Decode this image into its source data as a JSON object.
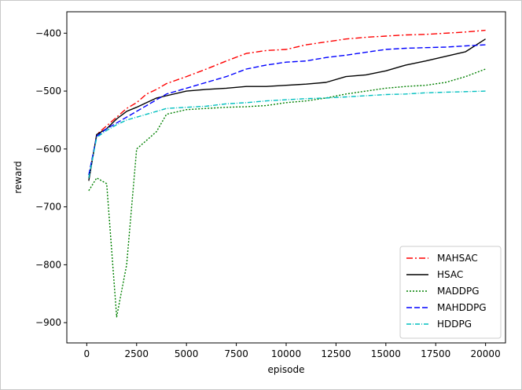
{
  "chart_data": {
    "type": "line",
    "title": "",
    "xlabel": "episode",
    "ylabel": "reward",
    "xlim": [
      -1000,
      21000
    ],
    "ylim": [
      -935,
      -363
    ],
    "xticks": [
      0,
      2500,
      5000,
      7500,
      10000,
      12500,
      15000,
      17500,
      20000
    ],
    "xtick_labels": [
      "0",
      "2500",
      "5000",
      "7500",
      "10000",
      "12500",
      "15000",
      "17500",
      "20000"
    ],
    "yticks": [
      -900,
      -800,
      -700,
      -600,
      -500,
      -400
    ],
    "ytick_labels": [
      "−900",
      "−800",
      "−700",
      "−600",
      "−500",
      "−400"
    ],
    "grid": false,
    "legend_position": "lower-right",
    "x": [
      100,
      500,
      1000,
      1500,
      2000,
      2500,
      3000,
      3500,
      4000,
      5000,
      6000,
      7000,
      8000,
      9000,
      10000,
      11000,
      12000,
      13000,
      14000,
      15000,
      16000,
      17000,
      18000,
      19000,
      20000
    ],
    "series": [
      {
        "name": "MAHSAC",
        "color": "#ff0000",
        "dash": "8 3 2 3",
        "values": [
          -650,
          -575,
          -560,
          -545,
          -530,
          -520,
          -505,
          -497,
          -487,
          -475,
          -462,
          -448,
          -435,
          -430,
          -428,
          -420,
          -415,
          -410,
          -407,
          -405,
          -403,
          -402,
          -400,
          -398,
          -395
        ]
      },
      {
        "name": "HSAC",
        "color": "#000000",
        "dash": "",
        "values": [
          -655,
          -575,
          -565,
          -548,
          -535,
          -528,
          -520,
          -512,
          -508,
          -500,
          -497,
          -495,
          -492,
          -492,
          -490,
          -488,
          -485,
          -475,
          -472,
          -465,
          -455,
          -448,
          -440,
          -432,
          -410
        ]
      },
      {
        "name": "MADDPG",
        "color": "#008000",
        "dash": "2 2",
        "values": [
          -672,
          -650,
          -660,
          -890,
          -800,
          -600,
          -585,
          -570,
          -540,
          -532,
          -530,
          -528,
          -527,
          -525,
          -520,
          -517,
          -512,
          -505,
          -500,
          -495,
          -492,
          -490,
          -485,
          -475,
          -462
        ]
      },
      {
        "name": "MAHDDPG",
        "color": "#0000ff",
        "dash": "7 3",
        "values": [
          -645,
          -578,
          -565,
          -555,
          -545,
          -535,
          -525,
          -515,
          -505,
          -495,
          -485,
          -475,
          -462,
          -455,
          -450,
          -448,
          -442,
          -438,
          -433,
          -428,
          -426,
          -425,
          -424,
          -422,
          -420
        ]
      },
      {
        "name": "HDDPG",
        "color": "#00bfbf",
        "dash": "6 2 1 2",
        "values": [
          -650,
          -580,
          -568,
          -558,
          -550,
          -545,
          -540,
          -535,
          -530,
          -528,
          -526,
          -522,
          -520,
          -517,
          -515,
          -513,
          -512,
          -510,
          -508,
          -506,
          -505,
          -503,
          -502,
          -501,
          -500
        ]
      }
    ]
  }
}
